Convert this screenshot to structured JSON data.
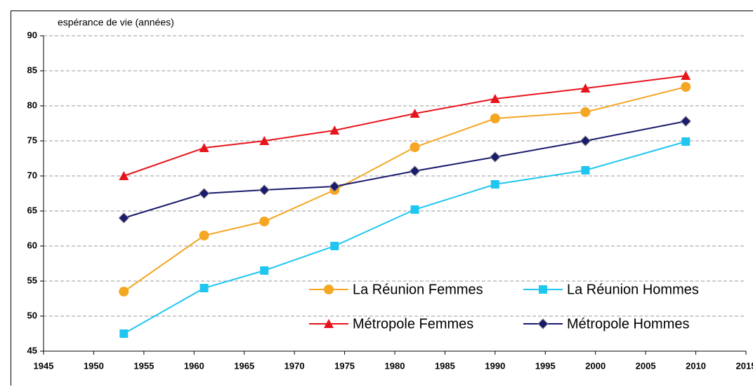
{
  "chart_data": {
    "type": "line",
    "y_label": "espérance de vie (années)",
    "x": [
      1953,
      1961,
      1967,
      1974,
      1982,
      1990,
      1999,
      2009
    ],
    "series": [
      {
        "name": "La Réunion Femmes",
        "color": "#f5a623",
        "marker": "circle",
        "values": [
          53.5,
          61.5,
          63.5,
          68,
          74.1,
          78.2,
          79.1,
          82.7
        ]
      },
      {
        "name": "La Réunion Hommes",
        "color": "#1ec6f0",
        "marker": "square",
        "values": [
          47.5,
          54,
          56.5,
          60,
          65.2,
          68.8,
          70.8,
          74.9
        ]
      },
      {
        "name": "Métropole Femmes",
        "color": "#e8141c",
        "marker": "triangle",
        "values": [
          70,
          74,
          75,
          76.5,
          78.9,
          81,
          82.5,
          84.3
        ]
      },
      {
        "name": "Métropole Hommes",
        "color": "#1a1a6e",
        "marker": "diamond",
        "values": [
          64,
          67.5,
          68,
          68.5,
          70.7,
          72.7,
          75,
          77.8
        ]
      }
    ],
    "xlim": [
      1945,
      2015
    ],
    "xticks": [
      1945,
      1950,
      1955,
      1960,
      1965,
      1970,
      1975,
      1980,
      1985,
      1990,
      1995,
      2000,
      2005,
      2010,
      2015
    ],
    "ylim": [
      45,
      90
    ],
    "yticks": [
      45,
      50,
      55,
      60,
      65,
      70,
      75,
      80,
      85,
      90
    ],
    "grid": true,
    "legend_position": "lower right"
  }
}
